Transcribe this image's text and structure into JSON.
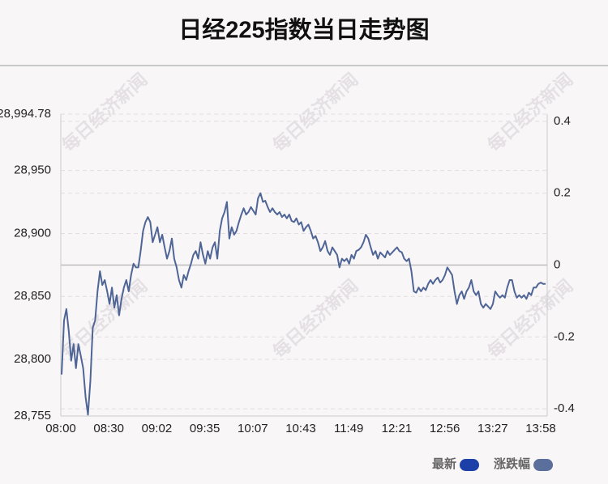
{
  "chart_data": {
    "type": "line",
    "title": "日经225指数当日走势图",
    "watermark": "每日经济新闻",
    "xticks": [
      "08:00",
      "08:30",
      "09:02",
      "09:35",
      "10:07",
      "10:43",
      "11:49",
      "12:21",
      "12:56",
      "13:27",
      "13:58"
    ],
    "series": [
      {
        "name": "最新",
        "color": "#1c3fa8",
        "line_color": "#4f6595",
        "values": [
          28788,
          28831,
          28840,
          28822,
          28799,
          28812,
          28793,
          28812,
          28803,
          28793,
          28770,
          28756,
          28783,
          28825,
          28831,
          28854,
          28870,
          28859,
          28863,
          28854,
          28844,
          28857,
          28841,
          28851,
          28835,
          28848,
          28857,
          28863,
          28854,
          28867,
          28876,
          28873,
          28873,
          28886,
          28902,
          28909,
          28913,
          28909,
          28893,
          28899,
          28905,
          28893,
          28899,
          28889,
          28880,
          28886,
          28896,
          28880,
          28873,
          28863,
          28857,
          28867,
          28863,
          28870,
          28876,
          28883,
          28886,
          28880,
          28893,
          28883,
          28876,
          28886,
          28880,
          28889,
          28893,
          28880,
          28902,
          28912,
          28917,
          28925,
          28896,
          28905,
          28899,
          28902,
          28909,
          28915,
          28920,
          28915,
          28917,
          28921,
          28918,
          28915,
          28928,
          28932,
          28925,
          28926,
          28921,
          28917,
          28920,
          28917,
          28915,
          28917,
          28913,
          28915,
          28912,
          28915,
          28910,
          28909,
          28912,
          28907,
          28909,
          28902,
          28905,
          28907,
          28902,
          28896,
          28898,
          28893,
          28886,
          28889,
          28894,
          28886,
          28883,
          28889,
          28886,
          28883,
          28873,
          28880,
          28878,
          28880,
          28876,
          28883,
          28880,
          28886,
          28887,
          28889,
          28893,
          28899,
          28896,
          28889,
          28883,
          28886,
          28880,
          28885,
          28883,
          28881,
          28886,
          28883,
          28885,
          28887,
          28889,
          28886,
          28885,
          28880,
          28878,
          28880,
          28870,
          28854,
          28853,
          28857,
          28854,
          28857,
          28855,
          28860,
          28863,
          28860,
          28863,
          28865,
          28861,
          28863,
          28867,
          28873,
          28870,
          28867,
          28854,
          28844,
          28851,
          28854,
          28848,
          28854,
          28857,
          28863,
          28854,
          28851,
          28854,
          28844,
          28841,
          28844,
          28842,
          28840,
          28844,
          28854,
          28851,
          28849,
          28851,
          28849,
          28857,
          28863,
          28863,
          28854,
          28849,
          28851,
          28849,
          28851,
          28848,
          28853,
          28851,
          28857,
          28857,
          28860,
          28861,
          28860,
          28860
        ]
      },
      {
        "name": "涨跌幅",
        "color": "#5b6f9c"
      }
    ],
    "ylim": [
      28755,
      28994.78
    ],
    "yticks": [
      {
        "value": 28755,
        "label": "28,755"
      },
      {
        "value": 28800,
        "label": "28,800"
      },
      {
        "value": 28850,
        "label": "28,850"
      },
      {
        "value": 28900,
        "label": "28,900"
      },
      {
        "value": 28950,
        "label": "28,950"
      },
      {
        "value": 28994.78,
        "label": "28,994.78"
      }
    ],
    "y2lim": [
      -0.42,
      0.42
    ],
    "y2ticks": [
      -0.4,
      -0.2,
      0,
      0.2,
      0.4
    ],
    "grid": true
  }
}
